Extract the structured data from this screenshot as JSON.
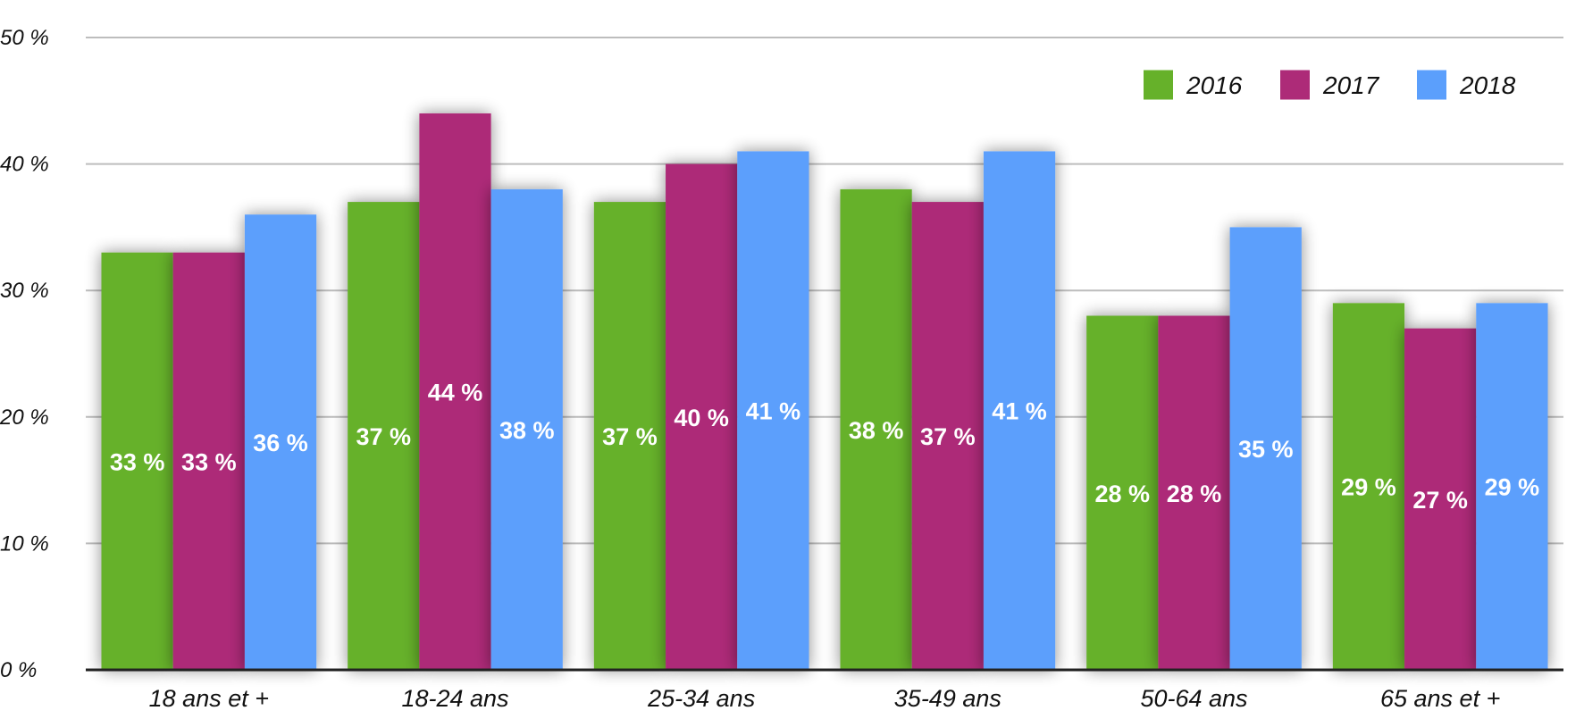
{
  "chart_data": {
    "type": "bar",
    "title": "",
    "xlabel": "",
    "ylabel": "",
    "ylim": [
      0,
      50
    ],
    "yticks": [
      {
        "value": 0,
        "label": "0 %"
      },
      {
        "value": 10,
        "label": "10 %"
      },
      {
        "value": 20,
        "label": "20 %"
      },
      {
        "value": 30,
        "label": "30 %"
      },
      {
        "value": 40,
        "label": "40 %"
      },
      {
        "value": 50,
        "label": "50 %"
      }
    ],
    "grid": true,
    "legend_position": "top-right",
    "categories": [
      "18 ans et +",
      "18-24 ans",
      "25-34 ans",
      "35-49 ans",
      "50-64 ans",
      "65 ans et +"
    ],
    "series": [
      {
        "name": "2016",
        "color": "#66b12a",
        "values": [
          33,
          37,
          37,
          38,
          28,
          29
        ],
        "labels": [
          "33 %",
          "37 %",
          "37 %",
          "38 %",
          "28 %",
          "29 %"
        ]
      },
      {
        "name": "2017",
        "color": "#ad2b78",
        "values": [
          33,
          44,
          40,
          37,
          28,
          27
        ],
        "labels": [
          "33 %",
          "44 %",
          "40 %",
          "37 %",
          "28 %",
          "27 %"
        ]
      },
      {
        "name": "2018",
        "color": "#5b9ffc",
        "values": [
          36,
          38,
          41,
          41,
          35,
          29
        ],
        "labels": [
          "36 %",
          "38 %",
          "41 %",
          "41 %",
          "35 %",
          "29 %"
        ]
      }
    ]
  }
}
